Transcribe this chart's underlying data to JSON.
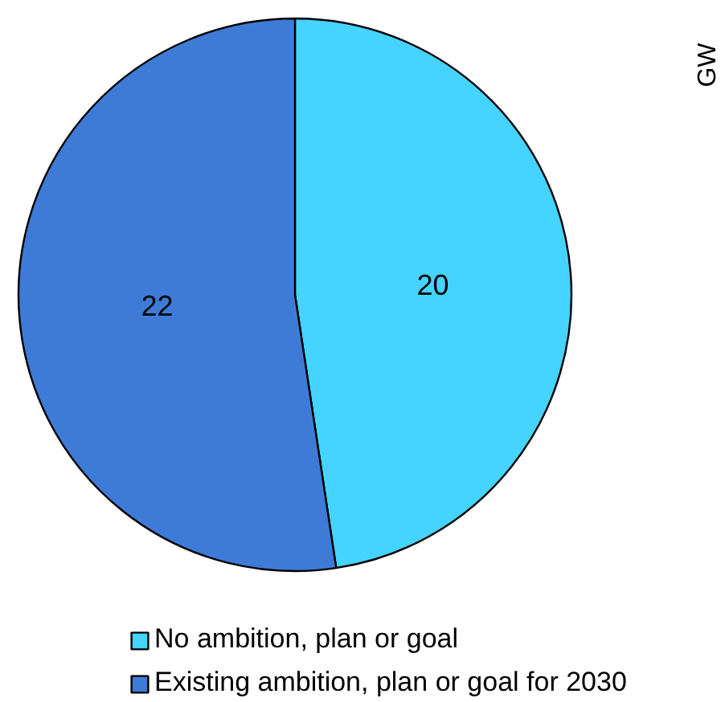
{
  "chart_data": {
    "type": "pie",
    "categories": [
      "No ambition, plan or goal",
      "Existing ambition, plan or goal for 2030"
    ],
    "values": [
      20,
      22
    ],
    "colors": [
      "#45d3ff",
      "#3e7bd6"
    ],
    "data_labels": true,
    "legend": "bottom",
    "annotations": [
      "GW"
    ]
  }
}
